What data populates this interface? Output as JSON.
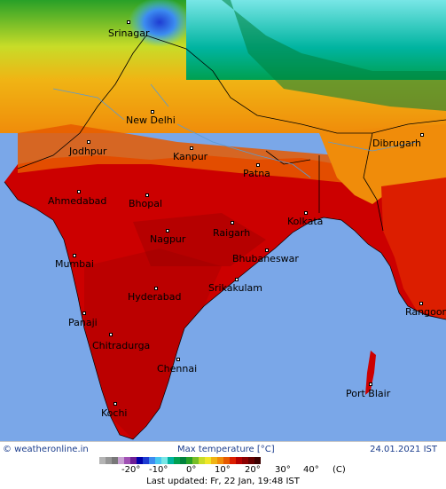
{
  "map": {
    "region": "India",
    "land_fill": "#cc0000",
    "sea_fill": "#7aa7e8",
    "cities": [
      {
        "name": "Srinagar"
      },
      {
        "name": "New Delhi"
      },
      {
        "name": "Jodhpur"
      },
      {
        "name": "Kanpur"
      },
      {
        "name": "Dibrugarh"
      },
      {
        "name": "Patna"
      },
      {
        "name": "Ahmedabad"
      },
      {
        "name": "Bhopal"
      },
      {
        "name": "Kolkata"
      },
      {
        "name": "Raigarh"
      },
      {
        "name": "Nagpur"
      },
      {
        "name": "Bhubaneswar"
      },
      {
        "name": "Mumbai"
      },
      {
        "name": "Srikakulam"
      },
      {
        "name": "Hyderabad"
      },
      {
        "name": "Rangoon"
      },
      {
        "name": "Panaji"
      },
      {
        "name": "Chitradurga"
      },
      {
        "name": "Chennai"
      },
      {
        "name": "Port Blair"
      },
      {
        "name": "Kochi"
      }
    ]
  },
  "footer": {
    "brand": "© weatheronline.in",
    "title": "Max temperature [°C]",
    "date": "24.01.2021  IST"
  },
  "legend": {
    "colors": [
      "#b4b4b4",
      "#969696",
      "#787878",
      "#c8a0d2",
      "#a050b4",
      "#6e1e96",
      "#0000aa",
      "#1e3cd2",
      "#3c8cf0",
      "#46c8f0",
      "#78e6e6",
      "#00b4a0",
      "#00a050",
      "#00823c",
      "#28a028",
      "#78be28",
      "#c8dc28",
      "#f0e628",
      "#f0b414",
      "#f08c0a",
      "#e65a00",
      "#dc1e00",
      "#b40000",
      "#8c0000",
      "#640000",
      "#3c0000"
    ],
    "ticks": [
      "-20°",
      "-10°",
      "0°",
      "10°",
      "20°",
      "30°",
      "40°"
    ],
    "unit": "(C)",
    "updated": "Last updated: Fr, 22 Jan, 19:48 IST"
  }
}
